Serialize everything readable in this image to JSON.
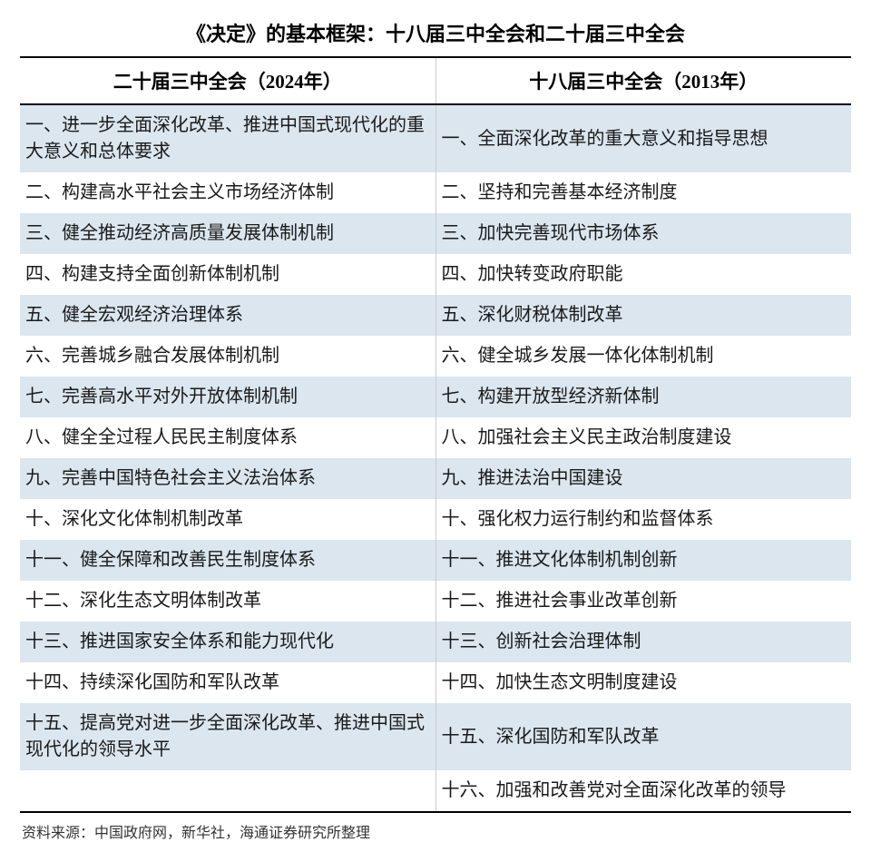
{
  "title": "《决定》的基本框架：十八届三中全会和二十届三中全会",
  "columns": [
    {
      "label": "二十届三中全会（2024年）"
    },
    {
      "label": "十八届三中全会（2013年）"
    }
  ],
  "rows": [
    {
      "left": "一、进一步全面深化改革、推进中国式现代化的重大意义和总体要求",
      "right": "一、全面深化改革的重大意义和指导思想"
    },
    {
      "left": "二、构建高水平社会主义市场经济体制",
      "right": "二、坚持和完善基本经济制度"
    },
    {
      "left": "三、健全推动经济高质量发展体制机制",
      "right": "三、加快完善现代市场体系"
    },
    {
      "left": "四、构建支持全面创新体制机制",
      "right": "四、加快转变政府职能"
    },
    {
      "left": "五、健全宏观经济治理体系",
      "right": "五、深化财税体制改革"
    },
    {
      "left": "六、完善城乡融合发展体制机制",
      "right": "六、健全城乡发展一体化体制机制"
    },
    {
      "left": "七、完善高水平对外开放体制机制",
      "right": "七、构建开放型经济新体制"
    },
    {
      "left": "八、健全全过程人民民主制度体系",
      "right": "八、加强社会主义民主政治制度建设"
    },
    {
      "left": "九、完善中国特色社会主义法治体系",
      "right": "九、推进法治中国建设"
    },
    {
      "left": "十、深化文化体制机制改革",
      "right": "十、强化权力运行制约和监督体系"
    },
    {
      "left": "十一、健全保障和改善民生制度体系",
      "right": "十一、推进文化体制机制创新"
    },
    {
      "left": "十二、深化生态文明体制改革",
      "right": "十二、推进社会事业改革创新"
    },
    {
      "left": "十三、推进国家安全体系和能力现代化",
      "right": "十三、创新社会治理体制"
    },
    {
      "left": "十四、持续深化国防和军队改革",
      "right": "十四、加快生态文明制度建设"
    },
    {
      "left": "十五、提高党对进一步全面深化改革、推进中国式现代化的领导水平",
      "right": "十五、深化国防和军队改革"
    },
    {
      "left": "",
      "right": "十六、加强和改善党对全面深化改革的领导"
    }
  ],
  "source": "资料来源：中国政府网，新华社，海通证券研究所整理",
  "styling": {
    "title_fontsize": 22,
    "header_fontsize": 21,
    "cell_fontsize": 20,
    "source_fontsize": 16,
    "odd_row_bg": "#dbe6ef",
    "even_row_bg": "#ffffff",
    "border_color": "#000000",
    "divider_color": "#cccccc",
    "text_color": "#1a1a1a",
    "font_family": "SimSun"
  }
}
